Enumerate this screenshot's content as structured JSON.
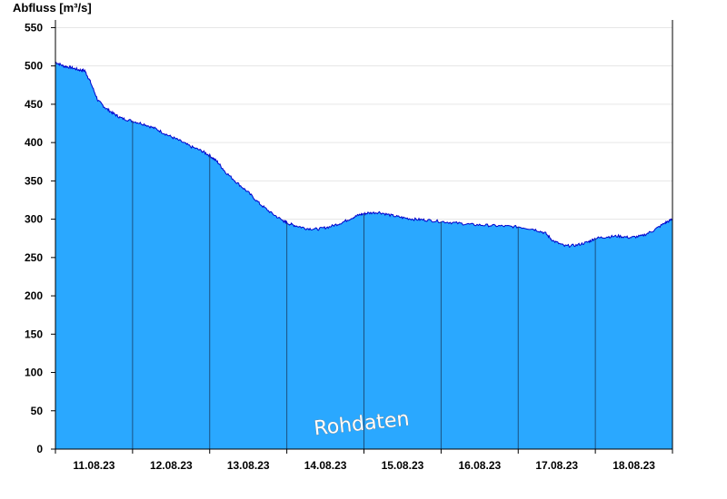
{
  "chart_data": {
    "type": "area",
    "title": "",
    "ylabel": "Abfluss [m³/s]",
    "xlabel": "",
    "ylim": [
      0,
      560
    ],
    "yticks": [
      0,
      50,
      100,
      150,
      200,
      250,
      300,
      350,
      400,
      450,
      500,
      550
    ],
    "xlim": [
      0,
      8
    ],
    "x_unit": "days from 10.08.23 12:00",
    "day_labels": [
      "11.08.23",
      "12.08.23",
      "13.08.23",
      "14.08.23",
      "15.08.23",
      "16.08.23",
      "17.08.23",
      "18.08.23"
    ],
    "watermark": "Rohdaten",
    "grid": "horizontal",
    "colors": {
      "fill": "#2aa8ff",
      "line": "#0000cc",
      "grid": "#e6e6e6",
      "separator": "#1a5080"
    },
    "series": [
      {
        "name": "",
        "points": [
          [
            0.0,
            505
          ],
          [
            0.1,
            500
          ],
          [
            0.2,
            498
          ],
          [
            0.3,
            495
          ],
          [
            0.38,
            494
          ],
          [
            0.45,
            480
          ],
          [
            0.55,
            455
          ],
          [
            0.65,
            445
          ],
          [
            0.75,
            438
          ],
          [
            0.85,
            432
          ],
          [
            1.0,
            428
          ],
          [
            1.15,
            424
          ],
          [
            1.3,
            418
          ],
          [
            1.45,
            410
          ],
          [
            1.6,
            403
          ],
          [
            1.75,
            395
          ],
          [
            1.9,
            389
          ],
          [
            2.0,
            383
          ],
          [
            2.1,
            375
          ],
          [
            2.2,
            362
          ],
          [
            2.35,
            348
          ],
          [
            2.5,
            335
          ],
          [
            2.65,
            320
          ],
          [
            2.8,
            308
          ],
          [
            2.95,
            298
          ],
          [
            3.0,
            295
          ],
          [
            3.1,
            292
          ],
          [
            3.25,
            288
          ],
          [
            3.4,
            287
          ],
          [
            3.55,
            290
          ],
          [
            3.7,
            295
          ],
          [
            3.85,
            302
          ],
          [
            3.95,
            306
          ],
          [
            4.05,
            308
          ],
          [
            4.2,
            309
          ],
          [
            4.35,
            305
          ],
          [
            4.5,
            302
          ],
          [
            4.65,
            300
          ],
          [
            4.8,
            299
          ],
          [
            5.0,
            297
          ],
          [
            5.2,
            295
          ],
          [
            5.4,
            293
          ],
          [
            5.6,
            292
          ],
          [
            5.8,
            291
          ],
          [
            6.0,
            290
          ],
          [
            6.2,
            287
          ],
          [
            6.35,
            282
          ],
          [
            6.45,
            272
          ],
          [
            6.6,
            265
          ],
          [
            6.75,
            266
          ],
          [
            6.9,
            270
          ],
          [
            7.0,
            275
          ],
          [
            7.15,
            277
          ],
          [
            7.3,
            278
          ],
          [
            7.45,
            276
          ],
          [
            7.6,
            278
          ],
          [
            7.75,
            285
          ],
          [
            7.9,
            295
          ],
          [
            8.0,
            300
          ]
        ]
      }
    ]
  }
}
